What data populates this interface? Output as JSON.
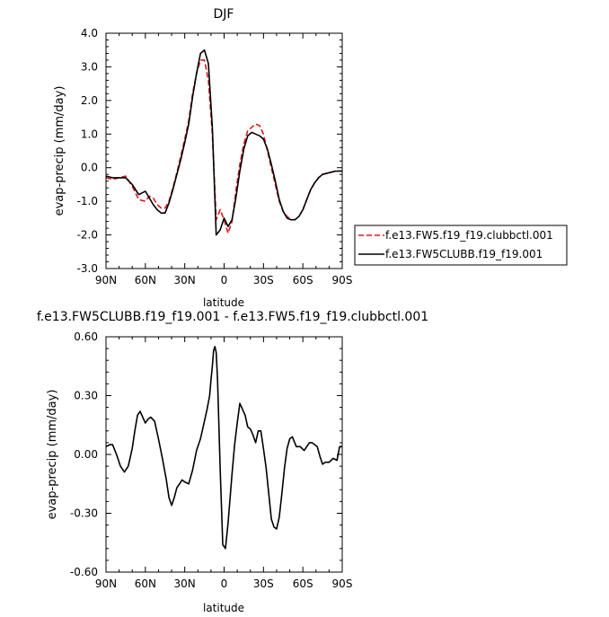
{
  "chart_data": [
    {
      "type": "line",
      "title": "DJF",
      "xlabel": "latitude",
      "ylabel": "evap-precip (mm/day)",
      "xlim": [
        90,
        -90
      ],
      "ylim": [
        -3.0,
        4.0
      ],
      "x_ticks": [
        90,
        60,
        30,
        0,
        -30,
        -60,
        -90
      ],
      "x_tick_labels": [
        "90N",
        "60N",
        "30N",
        "0",
        "30S",
        "60S",
        "90S"
      ],
      "y_ticks": [
        -3.0,
        -2.0,
        -1.0,
        0.0,
        1.0,
        2.0,
        3.0,
        4.0
      ],
      "y_tick_labels": [
        "-3.0",
        "-2.0",
        "-1.0",
        "0.0",
        "1.0",
        "2.0",
        "3.0",
        "4.0"
      ],
      "legend_position": "right",
      "series": [
        {
          "name": "f.e13.FW5.f19_f19.clubbctl.001",
          "color": "#e0141e",
          "dash": "dashed",
          "x": [
            90,
            85,
            80,
            75,
            70,
            65,
            60,
            57,
            54,
            51,
            48,
            45,
            42,
            39,
            36,
            33,
            30,
            27,
            24,
            21,
            18,
            15,
            12,
            9,
            6,
            3,
            0,
            -3,
            -6,
            -9,
            -12,
            -15,
            -18,
            -21,
            -24,
            -27,
            -30,
            -33,
            -36,
            -39,
            -42,
            -45,
            -48,
            -51,
            -54,
            -57,
            -60,
            -63,
            -66,
            -69,
            -72,
            -75,
            -80,
            -85,
            -90
          ],
          "y": [
            -0.3,
            -0.35,
            -0.3,
            -0.25,
            -0.55,
            -0.95,
            -1.0,
            -0.85,
            -0.9,
            -1.1,
            -1.2,
            -1.2,
            -1.0,
            -0.6,
            -0.15,
            0.35,
            0.85,
            1.4,
            2.2,
            2.8,
            3.2,
            3.2,
            2.6,
            1.0,
            -1.55,
            -1.25,
            -1.55,
            -1.95,
            -1.6,
            -0.7,
            0.1,
            0.7,
            1.1,
            1.2,
            1.3,
            1.25,
            1.0,
            0.5,
            0.0,
            -0.5,
            -1.0,
            -1.3,
            -1.45,
            -1.55,
            -1.55,
            -1.45,
            -1.25,
            -0.95,
            -0.65,
            -0.45,
            -0.3,
            -0.2,
            -0.15,
            -0.1,
            -0.1
          ]
        },
        {
          "name": "f.e13.FW5CLUBB.f19_f19.001",
          "color": "#000000",
          "dash": "solid",
          "x": [
            90,
            85,
            80,
            75,
            70,
            65,
            60,
            57,
            54,
            51,
            48,
            45,
            42,
            39,
            36,
            33,
            30,
            27,
            24,
            21,
            18,
            15,
            12,
            9,
            6,
            3,
            0,
            -3,
            -6,
            -9,
            -12,
            -15,
            -18,
            -21,
            -24,
            -27,
            -30,
            -33,
            -36,
            -39,
            -42,
            -45,
            -48,
            -51,
            -54,
            -57,
            -60,
            -63,
            -66,
            -69,
            -72,
            -75,
            -80,
            -85,
            -90
          ],
          "y": [
            -0.25,
            -0.3,
            -0.3,
            -0.3,
            -0.5,
            -0.8,
            -0.7,
            -0.9,
            -1.1,
            -1.25,
            -1.35,
            -1.35,
            -1.05,
            -0.65,
            -0.2,
            0.25,
            0.75,
            1.3,
            2.1,
            2.8,
            3.4,
            3.5,
            3.1,
            1.2,
            -2.0,
            -1.85,
            -1.5,
            -1.75,
            -1.55,
            -0.9,
            -0.1,
            0.55,
            0.95,
            1.05,
            1.0,
            0.95,
            0.85,
            0.55,
            0.1,
            -0.4,
            -0.95,
            -1.3,
            -1.5,
            -1.55,
            -1.55,
            -1.45,
            -1.25,
            -0.95,
            -0.65,
            -0.45,
            -0.3,
            -0.2,
            -0.15,
            -0.1,
            -0.1
          ]
        }
      ]
    },
    {
      "type": "line",
      "title": "f.e13.FW5CLUBB.f19_f19.001 - f.e13.FW5.f19_f19.clubbctl.001",
      "xlabel": "latitude",
      "ylabel": "evap-precip (mm/day)",
      "xlim": [
        90,
        -90
      ],
      "ylim": [
        -0.6,
        0.6
      ],
      "x_ticks": [
        90,
        60,
        30,
        0,
        -30,
        -60,
        -90
      ],
      "x_tick_labels": [
        "90N",
        "60N",
        "30N",
        "0",
        "30S",
        "60S",
        "90S"
      ],
      "y_ticks": [
        -0.6,
        -0.3,
        0.0,
        0.3,
        0.6
      ],
      "y_tick_labels": [
        "-0.60",
        "-0.30",
        "0.00",
        "0.30",
        "0.60"
      ],
      "series": [
        {
          "color": "#000000",
          "dash": "solid",
          "x": [
            90,
            87,
            85,
            82,
            79,
            76,
            73,
            70,
            68,
            66,
            64,
            62,
            60,
            58,
            56,
            53,
            50,
            47,
            44,
            42,
            40,
            38,
            36,
            34,
            32,
            30,
            27,
            24,
            21,
            18,
            15,
            13,
            11,
            10,
            9,
            8,
            7,
            6,
            5,
            3,
            1,
            -1,
            -3,
            -4,
            -6,
            -8,
            -10,
            -12,
            -14,
            -16,
            -18,
            -20,
            -22,
            -24,
            -26,
            -28,
            -30,
            -32,
            -34,
            -36,
            -38,
            -40,
            -42,
            -44,
            -46,
            -48,
            -50,
            -52,
            -55,
            -58,
            -61,
            -63,
            -65,
            -67,
            -69,
            -71,
            -73,
            -75,
            -77,
            -80,
            -83,
            -86,
            -88,
            -90
          ],
          "y": [
            0.04,
            0.05,
            0.05,
            0.0,
            -0.06,
            -0.09,
            -0.06,
            0.03,
            0.12,
            0.2,
            0.22,
            0.19,
            0.16,
            0.18,
            0.19,
            0.17,
            0.08,
            -0.02,
            -0.13,
            -0.22,
            -0.26,
            -0.22,
            -0.17,
            -0.15,
            -0.13,
            -0.14,
            -0.15,
            -0.08,
            0.02,
            0.08,
            0.17,
            0.23,
            0.3,
            0.38,
            0.45,
            0.53,
            0.55,
            0.52,
            0.38,
            -0.07,
            -0.46,
            -0.48,
            -0.35,
            -0.27,
            -0.1,
            0.05,
            0.16,
            0.26,
            0.23,
            0.2,
            0.14,
            0.13,
            0.1,
            0.06,
            0.12,
            0.12,
            0.03,
            -0.07,
            -0.2,
            -0.33,
            -0.37,
            -0.38,
            -0.32,
            -0.2,
            -0.07,
            0.03,
            0.08,
            0.09,
            0.04,
            0.04,
            0.02,
            0.04,
            0.06,
            0.06,
            0.05,
            0.04,
            -0.01,
            -0.05,
            -0.04,
            -0.04,
            -0.02,
            -0.03,
            0.04,
            0.04
          ]
        }
      ]
    }
  ],
  "legend": {
    "entries": [
      {
        "label": "f.e13.FW5.f19_f19.clubbctl.001",
        "color": "#e0141e",
        "dash": "dashed"
      },
      {
        "label": "f.e13.FW5CLUBB.f19_f19.001",
        "color": "#000000",
        "dash": "solid"
      }
    ]
  }
}
